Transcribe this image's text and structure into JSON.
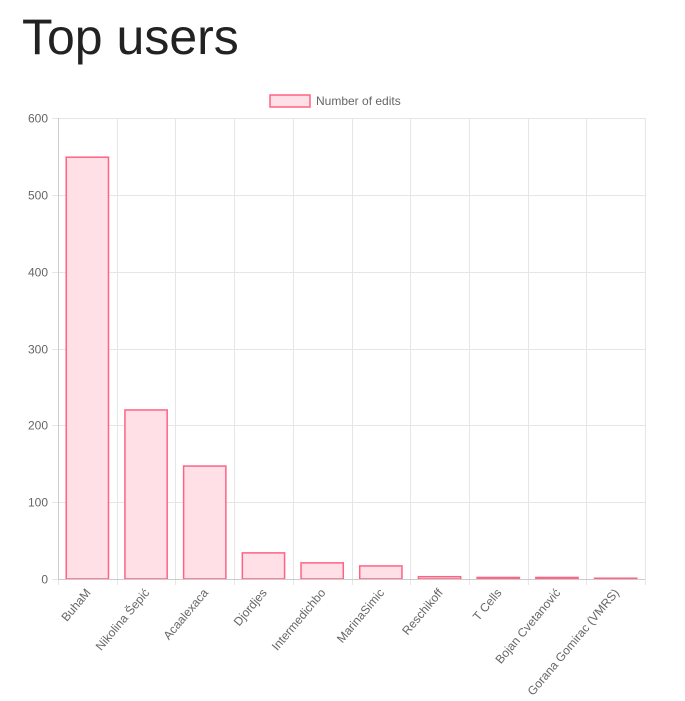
{
  "page": {
    "title": "Top users"
  },
  "chart_data": {
    "type": "bar",
    "categories": [
      "BuhaM",
      "Nikolina Šepić",
      "Acaalexaca",
      "Djordjes",
      "Intermedichbo",
      "MarinaSimic",
      "Reschikoff",
      "T Cells",
      "Bojan Cvetanović",
      "Gorana Gomirac (VMRS)"
    ],
    "series": [
      {
        "name": "Number of edits",
        "values": [
          549,
          220,
          147,
          34,
          21,
          17,
          3,
          2,
          2,
          1
        ]
      }
    ],
    "ylim": [
      0,
      600
    ],
    "yticks": [
      0,
      100,
      200,
      300,
      400,
      500,
      600
    ],
    "grid": true,
    "legend": "top-center",
    "colors": {
      "bar_fill": "#ffe0e6",
      "bar_border": "#ff6384",
      "grid": "#e6e6e6",
      "axis": "#cccccc",
      "text": "#666666"
    }
  }
}
